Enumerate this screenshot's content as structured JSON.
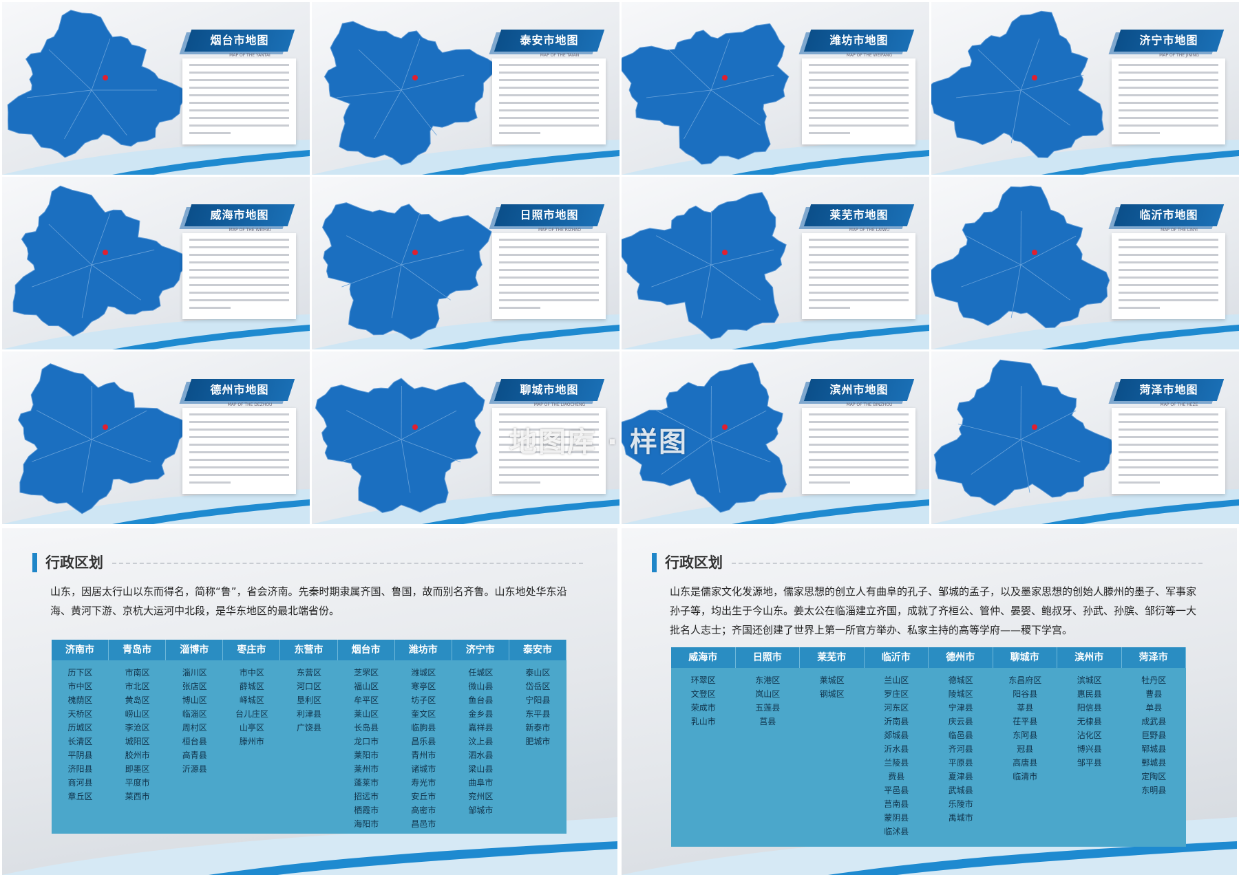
{
  "slides": [
    {
      "title": "烟台市地图",
      "subtitle": "MAP OF THE YANTAI"
    },
    {
      "title": "泰安市地图",
      "subtitle": "MAP OF THE TAIAN"
    },
    {
      "title": "潍坊市地图",
      "subtitle": "MAP OF THE WEIFANG"
    },
    {
      "title": "济宁市地图",
      "subtitle": "MAP OF THE JINING"
    },
    {
      "title": "威海市地图",
      "subtitle": "MAP OF THE WEIHAI"
    },
    {
      "title": "日照市地图",
      "subtitle": "MAP OF THE RIZHAO"
    },
    {
      "title": "莱芜市地图",
      "subtitle": "MAP OF THE LAIWU"
    },
    {
      "title": "临沂市地图",
      "subtitle": "MAP OF THE LINYI"
    },
    {
      "title": "德州市地图",
      "subtitle": "MAP OF THE DEZHOU"
    },
    {
      "title": "聊城市地图",
      "subtitle": "MAP OF THE LIAOCHENG"
    },
    {
      "title": "滨州市地图",
      "subtitle": "MAP OF THE BINZHOU"
    },
    {
      "title": "菏泽市地图",
      "subtitle": "MAP OF THE HEZE"
    }
  ],
  "watermark": "地图库 · 样图",
  "panels": [
    {
      "heading": "行政区划",
      "paragraph": "山东，因居太行山以东而得名，简称“鲁”，省会济南。先秦时期隶属齐国、鲁国，故而别名齐鲁。山东地处华东沿海、黄河下游、京杭大运河中北段，是华东地区的最北端省份。",
      "table": {
        "headers": [
          "济南市",
          "青岛市",
          "淄博市",
          "枣庄市",
          "东营市",
          "烟台市",
          "潍坊市",
          "济宁市",
          "泰安市"
        ],
        "columns": [
          [
            "历下区",
            "市中区",
            "槐荫区",
            "天桥区",
            "历城区",
            "长清区",
            "平阴县",
            "济阳县",
            "商河县",
            "章丘区"
          ],
          [
            "市南区",
            "市北区",
            "黄岛区",
            "崂山区",
            "李沧区",
            "城阳区",
            "胶州市",
            "即墨区",
            "平度市",
            "莱西市"
          ],
          [
            "淄川区",
            "张店区",
            "博山区",
            "临淄区",
            "周村区",
            "桓台县",
            "高青县",
            "沂源县"
          ],
          [
            "市中区",
            "薛城区",
            "峄城区",
            "台儿庄区",
            "山亭区",
            "滕州市"
          ],
          [
            "东营区",
            "河口区",
            "垦利区",
            "利津县",
            "广饶县"
          ],
          [
            "芝罘区",
            "福山区",
            "牟平区",
            "莱山区",
            "长岛县",
            "龙口市",
            "莱阳市",
            "莱州市",
            "蓬莱市",
            "招远市",
            "栖霞市",
            "海阳市"
          ],
          [
            "潍城区",
            "寒亭区",
            "坊子区",
            "奎文区",
            "临朐县",
            "昌乐县",
            "青州市",
            "诸城市",
            "寿光市",
            "安丘市",
            "高密市",
            "昌邑市"
          ],
          [
            "任城区",
            "微山县",
            "鱼台县",
            "金乡县",
            "嘉祥县",
            "汶上县",
            "泗水县",
            "梁山县",
            "曲阜市",
            "兖州区",
            "邹城市"
          ],
          [
            "泰山区",
            "岱岳区",
            "宁阳县",
            "东平县",
            "新泰市",
            "肥城市"
          ]
        ]
      }
    },
    {
      "heading": "行政区划",
      "paragraph": "山东是儒家文化发源地，儒家思想的创立人有曲阜的孔子、邹城的孟子，以及墨家思想的创始人滕州的墨子、军事家孙子等，均出生于今山东。姜太公在临淄建立齐国，成就了齐桓公、管仲、晏婴、鲍叔牙、孙武、孙膑、邹衍等一大批名人志士；齐国还创建了世界上第一所官方举办、私家主持的高等学府——稷下学宫。",
      "table": {
        "headers": [
          "威海市",
          "日照市",
          "莱芜市",
          "临沂市",
          "德州市",
          "聊城市",
          "滨州市",
          "菏泽市"
        ],
        "columns": [
          [
            "环翠区",
            "文登区",
            "荣成市",
            "乳山市"
          ],
          [
            "东港区",
            "岚山区",
            "五莲县",
            "莒县"
          ],
          [
            "莱城区",
            "钢城区"
          ],
          [
            "兰山区",
            "罗庄区",
            "河东区",
            "沂南县",
            "郯城县",
            "沂水县",
            "兰陵县",
            "费县",
            "平邑县",
            "莒南县",
            "蒙阴县",
            "临沭县"
          ],
          [
            "德城区",
            "陵城区",
            "宁津县",
            "庆云县",
            "临邑县",
            "齐河县",
            "平原县",
            "夏津县",
            "武城县",
            "乐陵市",
            "禹城市"
          ],
          [
            "东昌府区",
            "阳谷县",
            "莘县",
            "茌平县",
            "东阿县",
            "冠县",
            "高唐县",
            "临清市"
          ],
          [
            "滨城区",
            "惠民县",
            "阳信县",
            "无棣县",
            "沾化区",
            "博兴县",
            "邹平县"
          ],
          [
            "牡丹区",
            "曹县",
            "单县",
            "成武县",
            "巨野县",
            "郓城县",
            "鄄城县",
            "定陶区",
            "东明县"
          ]
        ]
      }
    }
  ]
}
